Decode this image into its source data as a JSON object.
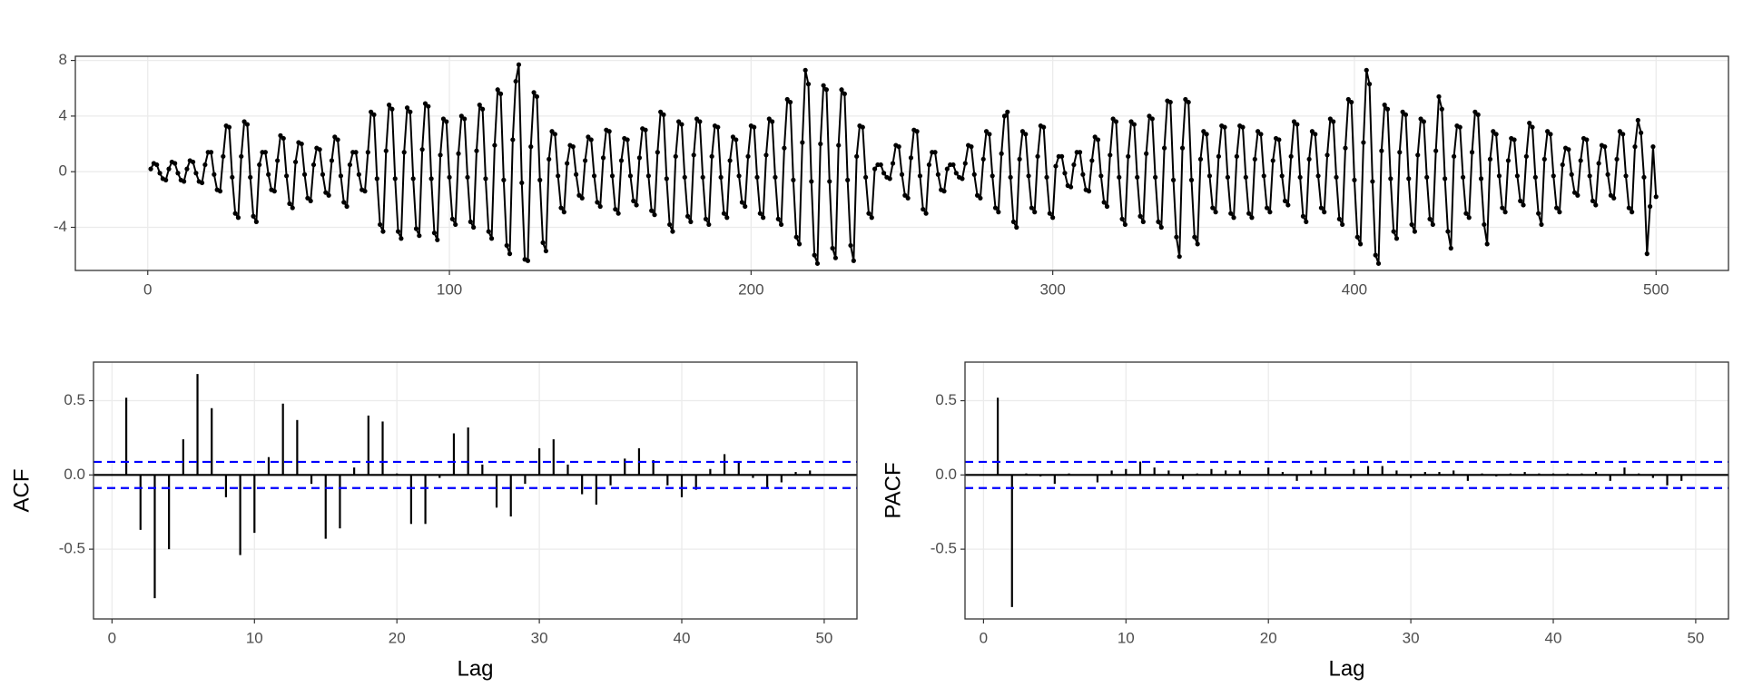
{
  "chart_data": [
    {
      "type": "line",
      "color": "#000000",
      "grid": true,
      "xlim": [
        -24,
        524
      ],
      "xticks": [
        0,
        100,
        200,
        300,
        400,
        500
      ],
      "ylim": [
        -7.1,
        8.3
      ],
      "yticks": [
        -4,
        0,
        4,
        8
      ],
      "x": [
        1,
        2,
        3,
        4,
        5,
        6,
        7,
        8,
        9,
        10,
        11,
        12,
        13,
        14,
        15,
        16,
        17,
        18,
        19,
        20,
        21,
        22,
        23,
        24,
        25,
        26,
        27,
        28,
        29,
        30,
        31,
        32,
        33,
        34,
        35,
        36,
        37,
        38,
        39,
        40,
        41,
        42,
        43,
        44,
        45,
        46,
        47,
        48,
        49,
        50,
        51,
        52,
        53,
        54,
        55,
        56,
        57,
        58,
        59,
        60,
        61,
        62,
        63,
        64,
        65,
        66,
        67,
        68,
        69,
        70,
        71,
        72,
        73,
        74,
        75,
        76,
        77,
        78,
        79,
        80,
        81,
        82,
        83,
        84,
        85,
        86,
        87,
        88,
        89,
        90,
        91,
        92,
        93,
        94,
        95,
        96,
        97,
        98,
        99,
        100,
        101,
        102,
        103,
        104,
        105,
        106,
        107,
        108,
        109,
        110,
        111,
        112,
        113,
        114,
        115,
        116,
        117,
        118,
        119,
        120,
        121,
        122,
        123,
        124,
        125,
        126,
        127,
        128,
        129,
        130,
        131,
        132,
        133,
        134,
        135,
        136,
        137,
        138,
        139,
        140,
        141,
        142,
        143,
        144,
        145,
        146,
        147,
        148,
        149,
        150,
        151,
        152,
        153,
        154,
        155,
        156,
        157,
        158,
        159,
        160,
        161,
        162,
        163,
        164,
        165,
        166,
        167,
        168,
        169,
        170,
        171,
        172,
        173,
        174,
        175,
        176,
        177,
        178,
        179,
        180,
        181,
        182,
        183,
        184,
        185,
        186,
        187,
        188,
        189,
        190,
        191,
        192,
        193,
        194,
        195,
        196,
        197,
        198,
        199,
        200,
        201,
        202,
        203,
        204,
        205,
        206,
        207,
        208,
        209,
        210,
        211,
        212,
        213,
        214,
        215,
        216,
        217,
        218,
        219,
        220,
        221,
        222,
        223,
        224,
        225,
        226,
        227,
        228,
        229,
        230,
        231,
        232,
        233,
        234,
        235,
        236,
        237,
        238,
        239,
        240,
        241,
        242,
        243,
        244,
        245,
        246,
        247,
        248,
        249,
        250,
        251,
        252,
        253,
        254,
        255,
        256,
        257,
        258,
        259,
        260,
        261,
        262,
        263,
        264,
        265,
        266,
        267,
        268,
        269,
        270,
        271,
        272,
        273,
        274,
        275,
        276,
        277,
        278,
        279,
        280,
        281,
        282,
        283,
        284,
        285,
        286,
        287,
        288,
        289,
        290,
        291,
        292,
        293,
        294,
        295,
        296,
        297,
        298,
        299,
        300,
        301,
        302,
        303,
        304,
        305,
        306,
        307,
        308,
        309,
        310,
        311,
        312,
        313,
        314,
        315,
        316,
        317,
        318,
        319,
        320,
        321,
        322,
        323,
        324,
        325,
        326,
        327,
        328,
        329,
        330,
        331,
        332,
        333,
        334,
        335,
        336,
        337,
        338,
        339,
        340,
        341,
        342,
        343,
        344,
        345,
        346,
        347,
        348,
        349,
        350,
        351,
        352,
        353,
        354,
        355,
        356,
        357,
        358,
        359,
        360,
        361,
        362,
        363,
        364,
        365,
        366,
        367,
        368,
        369,
        370,
        371,
        372,
        373,
        374,
        375,
        376,
        377,
        378,
        379,
        380,
        381,
        382,
        383,
        384,
        385,
        386,
        387,
        388,
        389,
        390,
        391,
        392,
        393,
        394,
        395,
        396,
        397,
        398,
        399,
        400,
        401,
        402,
        403,
        404,
        405,
        406,
        407,
        408,
        409,
        410,
        411,
        412,
        413,
        414,
        415,
        416,
        417,
        418,
        419,
        420,
        421,
        422,
        423,
        424,
        425,
        426,
        427,
        428,
        429,
        430,
        431,
        432,
        433,
        434,
        435,
        436,
        437,
        438,
        439,
        440,
        441,
        442,
        443,
        444,
        445,
        446,
        447,
        448,
        449,
        450,
        451,
        452,
        453,
        454,
        455,
        456,
        457,
        458,
        459,
        460,
        461,
        462,
        463,
        464,
        465,
        466,
        467,
        468,
        469,
        470,
        471,
        472,
        473,
        474,
        475,
        476,
        477,
        478,
        479,
        480,
        481,
        482,
        483,
        484,
        485,
        486,
        487,
        488,
        489,
        490,
        491,
        492,
        493,
        494,
        495,
        496,
        497,
        498,
        499,
        500
      ],
      "values": [
        0.2,
        0.6,
        0.5,
        -0.1,
        -0.5,
        -0.6,
        0.2,
        0.7,
        0.6,
        -0.1,
        -0.6,
        -0.7,
        0.2,
        0.8,
        0.7,
        -0.1,
        -0.7,
        -0.8,
        0.5,
        1.4,
        1.4,
        -0.2,
        -1.3,
        -1.4,
        1.1,
        3.3,
        3.2,
        -0.4,
        -3,
        -3.3,
        1.1,
        3.6,
        3.4,
        -0.4,
        -3.2,
        -3.6,
        0.5,
        1.4,
        1.4,
        -0.2,
        -1.3,
        -1.4,
        0.8,
        2.6,
        2.4,
        -0.3,
        -2.3,
        -2.6,
        0.7,
        2.1,
        2,
        -0.2,
        -1.9,
        -2.1,
        0.5,
        1.7,
        1.6,
        -0.2,
        -1.5,
        -1.7,
        0.8,
        2.5,
        2.3,
        -0.3,
        -2.2,
        -2.5,
        0.5,
        1.4,
        1.4,
        -0.2,
        -1.3,
        -1.4,
        1.4,
        4.3,
        4.1,
        -0.5,
        -3.8,
        -4.3,
        1.5,
        4.8,
        4.5,
        -0.5,
        -4.3,
        -4.8,
        1.4,
        4.6,
        4.3,
        -0.5,
        -4.1,
        -4.6,
        1.6,
        4.9,
        4.7,
        -0.5,
        -4.4,
        -4.9,
        1.2,
        3.8,
        3.6,
        -0.4,
        -3.4,
        -3.8,
        1.3,
        4,
        3.8,
        -0.4,
        -3.6,
        -4,
        1.5,
        4.8,
        4.5,
        -0.5,
        -4.3,
        -4.8,
        1.9,
        5.9,
        5.6,
        -0.6,
        -5.3,
        -5.9,
        2.3,
        6.5,
        7.7,
        -0.8,
        -6.3,
        -6.4,
        1.8,
        5.7,
        5.4,
        -0.6,
        -5.1,
        -5.7,
        0.9,
        2.9,
        2.7,
        -0.3,
        -2.6,
        -2.9,
        0.6,
        1.9,
        1.8,
        -0.2,
        -1.7,
        -1.9,
        0.8,
        2.5,
        2.3,
        -0.3,
        -2.2,
        -2.5,
        1,
        3,
        2.9,
        -0.3,
        -2.7,
        -3,
        0.8,
        2.4,
        2.3,
        -0.3,
        -2.1,
        -2.4,
        1,
        3.1,
        3,
        -0.3,
        -2.8,
        -3.1,
        1.4,
        4.3,
        4.1,
        -0.5,
        -3.8,
        -4.3,
        1.1,
        3.6,
        3.4,
        -0.4,
        -3.2,
        -3.6,
        1.2,
        3.8,
        3.6,
        -0.4,
        -3.4,
        -3.8,
        1.1,
        3.3,
        3.2,
        -0.4,
        -3,
        -3.3,
        0.8,
        2.5,
        2.3,
        -0.3,
        -2.2,
        -2.5,
        1.1,
        3.3,
        3.2,
        -0.4,
        -3,
        -3.3,
        1.2,
        3.8,
        3.6,
        -0.4,
        -3.4,
        -3.8,
        1.7,
        5.2,
        5,
        -0.6,
        -4.7,
        -5.2,
        2.1,
        7.3,
        6.3,
        -0.7,
        -6,
        -6.6,
        2,
        6.2,
        5.9,
        -0.7,
        -5.5,
        -6.2,
        1.9,
        5.9,
        5.6,
        -0.6,
        -5.3,
        -6.4,
        1.1,
        3.3,
        3.2,
        -0.4,
        -3,
        -3.3,
        0.2,
        0.5,
        0.5,
        -0.1,
        -0.4,
        -0.5,
        0.6,
        1.9,
        1.8,
        -0.2,
        -1.7,
        -1.9,
        1,
        3,
        2.9,
        -0.3,
        -2.7,
        -3,
        0.5,
        1.4,
        1.4,
        -0.2,
        -1.3,
        -1.4,
        0.2,
        0.5,
        0.5,
        -0.1,
        -0.4,
        -0.5,
        0.6,
        1.9,
        1.8,
        -0.2,
        -1.7,
        -1.9,
        0.9,
        2.9,
        2.7,
        -0.3,
        -2.6,
        -2.9,
        1.3,
        4,
        4.3,
        -0.4,
        -3.6,
        -4,
        0.9,
        2.9,
        2.7,
        -0.3,
        -2.6,
        -2.9,
        1.1,
        3.3,
        3.2,
        -0.4,
        -3,
        -3.3,
        0.4,
        1.1,
        1.1,
        -0.1,
        -1,
        -1.1,
        0.5,
        1.4,
        1.4,
        -0.2,
        -1.3,
        -1.4,
        0.8,
        2.5,
        2.3,
        -0.3,
        -2.2,
        -2.5,
        1.2,
        3.8,
        3.6,
        -0.4,
        -3.4,
        -3.8,
        1.1,
        3.6,
        3.4,
        -0.4,
        -3.2,
        -3.6,
        1.3,
        4,
        3.8,
        -0.4,
        -3.6,
        -4,
        1.7,
        5.1,
        5,
        -0.6,
        -4.7,
        -6.1,
        1.7,
        5.2,
        5,
        -0.6,
        -4.7,
        -5.2,
        0.9,
        2.9,
        2.7,
        -0.3,
        -2.6,
        -2.9,
        1.1,
        3.3,
        3.2,
        -0.4,
        -3,
        -3.3,
        1.1,
        3.3,
        3.2,
        -0.4,
        -3,
        -3.3,
        0.9,
        2.9,
        2.7,
        -0.3,
        -2.6,
        -2.9,
        0.8,
        2.4,
        2.3,
        -0.3,
        -2.1,
        -2.4,
        1.1,
        3.6,
        3.4,
        -0.4,
        -3.2,
        -3.6,
        0.9,
        2.9,
        2.7,
        -0.3,
        -2.6,
        -2.9,
        1.2,
        3.8,
        3.6,
        -0.4,
        -3.4,
        -3.8,
        1.7,
        5.2,
        5,
        -0.6,
        -4.7,
        -5.2,
        2.1,
        7.3,
        6.3,
        -0.7,
        -6,
        -6.6,
        1.5,
        4.8,
        4.5,
        -0.5,
        -4.3,
        -4.8,
        1.4,
        4.3,
        4.1,
        -0.5,
        -3.8,
        -4.3,
        1.2,
        3.8,
        3.6,
        -0.4,
        -3.4,
        -3.8,
        1.5,
        5.4,
        4.5,
        -0.5,
        -4.3,
        -5.5,
        1.1,
        3.3,
        3.2,
        -0.4,
        -3,
        -3.3,
        1.4,
        4.3,
        4.1,
        -0.5,
        -3.8,
        -5.2,
        0.9,
        2.9,
        2.7,
        -0.3,
        -2.6,
        -2.9,
        0.8,
        2.4,
        2.3,
        -0.3,
        -2.1,
        -2.4,
        1.1,
        3.5,
        3.2,
        -0.4,
        -3,
        -3.8,
        0.9,
        2.9,
        2.7,
        -0.3,
        -2.6,
        -2.9,
        0.5,
        1.7,
        1.6,
        -0.2,
        -1.5,
        -1.7,
        0.8,
        2.4,
        2.3,
        -0.3,
        -2.1,
        -2.4,
        0.6,
        1.9,
        1.8,
        -0.2,
        -1.7,
        -1.9,
        0.9,
        2.9,
        2.7,
        -0.3,
        -2.6,
        -2.9,
        1.8,
        3.7,
        2.8,
        -0.4,
        -5.9,
        -2.5,
        1.8,
        -1.8
      ]
    },
    {
      "type": "stem",
      "color": "#000000",
      "grid": true,
      "ylabel": "ACF",
      "xlabel": "Lag",
      "xlim": [
        -1.3,
        52.3
      ],
      "xticks": [
        0,
        10,
        20,
        30,
        40,
        50
      ],
      "ylim": [
        -0.97,
        0.76
      ],
      "yticks": [
        {
          "value": -0.5,
          "label": "-0.5"
        },
        {
          "value": 0,
          "label": "0.0"
        },
        {
          "value": 0.5,
          "label": "0.5"
        }
      ],
      "conf_lines": [
        0.088,
        -0.088
      ],
      "conf_color": "#0000ff",
      "x": [
        1,
        2,
        3,
        4,
        5,
        6,
        7,
        8,
        9,
        10,
        11,
        12,
        13,
        14,
        15,
        16,
        17,
        18,
        19,
        20,
        21,
        22,
        23,
        24,
        25,
        26,
        27,
        28,
        29,
        30,
        31,
        32,
        33,
        34,
        35,
        36,
        37,
        38,
        39,
        40,
        41,
        42,
        43,
        44,
        45,
        46,
        47,
        48,
        49
      ],
      "values": [
        0.52,
        -0.37,
        -0.83,
        -0.5,
        0.24,
        0.68,
        0.45,
        -0.15,
        -0.54,
        -0.39,
        0.12,
        0.48,
        0.37,
        -0.06,
        -0.43,
        -0.36,
        0.05,
        0.4,
        0.36,
        0.01,
        -0.33,
        -0.33,
        -0.02,
        0.28,
        0.32,
        0.07,
        -0.22,
        -0.28,
        -0.06,
        0.18,
        0.24,
        0.07,
        -0.13,
        -0.2,
        -0.07,
        0.11,
        0.18,
        0.1,
        -0.07,
        -0.15,
        -0.1,
        0.04,
        0.14,
        0.09,
        -0.02,
        -0.09,
        -0.05,
        0.02,
        0.03
      ]
    },
    {
      "type": "stem",
      "color": "#000000",
      "grid": true,
      "ylabel": "PACF",
      "xlabel": "Lag",
      "xlim": [
        -1.3,
        52.3
      ],
      "xticks": [
        0,
        10,
        20,
        30,
        40,
        50
      ],
      "ylim": [
        -0.97,
        0.76
      ],
      "yticks": [
        {
          "value": -0.5,
          "label": "-0.5"
        },
        {
          "value": 0,
          "label": "0.0"
        },
        {
          "value": 0.5,
          "label": "0.5"
        }
      ],
      "conf_lines": [
        0.088,
        -0.088
      ],
      "conf_color": "#0000ff",
      "x": [
        1,
        2,
        3,
        4,
        5,
        6,
        7,
        8,
        9,
        10,
        11,
        12,
        13,
        14,
        15,
        16,
        17,
        18,
        19,
        20,
        21,
        22,
        23,
        24,
        25,
        26,
        27,
        28,
        29,
        30,
        31,
        32,
        33,
        34,
        35,
        36,
        37,
        38,
        39,
        40,
        41,
        42,
        43,
        44,
        45,
        46,
        47,
        48,
        49
      ],
      "values": [
        0.52,
        -0.89,
        0.01,
        -0.01,
        -0.06,
        0.01,
        0,
        -0.05,
        0.03,
        0.04,
        0.09,
        0.05,
        0.03,
        -0.03,
        0.01,
        0.04,
        0.03,
        0.03,
        0,
        0.05,
        0.02,
        -0.04,
        0.03,
        0.05,
        0,
        0.04,
        0.06,
        0.06,
        0.03,
        -0.02,
        0.02,
        0.02,
        0.03,
        -0.04,
        0.01,
        -0.01,
        0.01,
        0.02,
        0.01,
        0.01,
        0.01,
        0.01,
        0.02,
        -0.04,
        0.05,
        0.01,
        -0.02,
        -0.07,
        -0.04
      ]
    }
  ]
}
